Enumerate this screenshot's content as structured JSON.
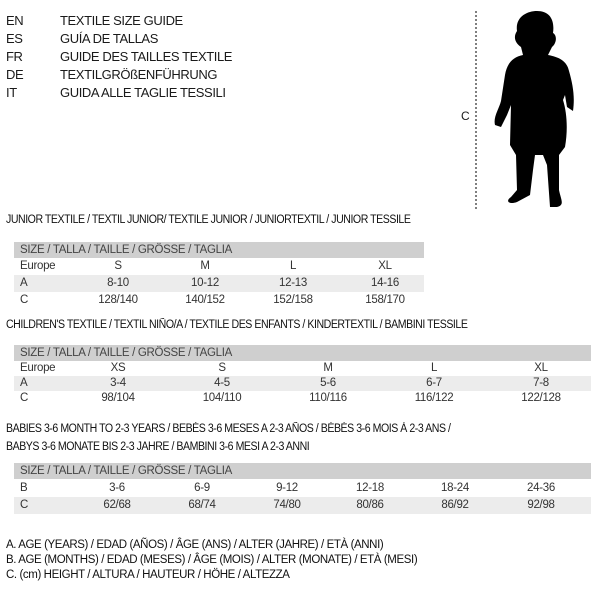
{
  "languages": [
    {
      "code": "EN",
      "label": "TEXTILE SIZE GUIDE"
    },
    {
      "code": "ES",
      "label": "GUÍA DE TALLAS"
    },
    {
      "code": "FR",
      "label": "GUIDE DES TAILLES TEXTILE"
    },
    {
      "code": "DE",
      "label": "TEXTILGRÖßENFÜHRUNG"
    },
    {
      "code": "IT",
      "label": "GUIDA ALLE TAGLIE TESSILI"
    }
  ],
  "figure": {
    "measure_label": "C"
  },
  "junior": {
    "title": "JUNIOR TEXTILE / TEXTIL JUNIOR/ TEXTILE JUNIOR / JUNIORTEXTIL / JUNIOR TESSILE",
    "header": "SIZE / TALLA / TAILLE / GRÖSSE / TAGLIA",
    "rows": [
      {
        "label": "Europe",
        "values": [
          "S",
          "M",
          "L",
          "XL"
        ]
      },
      {
        "label": "A",
        "values": [
          "8-10",
          "10-12",
          "12-13",
          "14-16"
        ]
      },
      {
        "label": "C",
        "values": [
          "128/140",
          "140/152",
          "152/158",
          "158/170"
        ]
      }
    ]
  },
  "children": {
    "title": "CHILDREN'S TEXTILE / TEXTIL NIÑO/A / TEXTILE DES ENFANTS / KINDERTEXTIL / BAMBINI TESSILE",
    "header": "SIZE / TALLA / TAILLE / GRÖSSE / TAGLIA",
    "rows": [
      {
        "label": "Europe",
        "values": [
          "XS",
          "S",
          "M",
          "L",
          "XL"
        ]
      },
      {
        "label": "A",
        "values": [
          "3-4",
          "4-5",
          "5-6",
          "6-7",
          "7-8"
        ]
      },
      {
        "label": "C",
        "values": [
          "98/104",
          "104/110",
          "110/116",
          "116/122",
          "122/128"
        ]
      }
    ]
  },
  "babies": {
    "title_line1": "BABIES 3-6 MONTH TO 2-3 YEARS / BEBÉS 3-6 MESES A 2-3 AÑOS / BÉBÉS 3-6 MOIS À 2-3 ANS /",
    "title_line2": "BABYS 3-6 MONATE BIS 2-3 JAHRE / BAMBINI 3-6 MESI A 2-3 ANNI",
    "header": "SIZE / TALLA / TAILLE / GRÖSSE / TAGLIA",
    "rows": [
      {
        "label": "B",
        "values": [
          "3-6",
          "6-9",
          "9-12",
          "12-18",
          "18-24",
          "24-36"
        ]
      },
      {
        "label": "C",
        "values": [
          "62/68",
          "68/74",
          "74/80",
          "80/86",
          "86/92",
          "92/98"
        ]
      }
    ]
  },
  "legend": [
    "A. AGE (YEARS) / EDAD (AÑOS) / ÂGE (ANS) / ALTER (JAHRE) / ETÀ (ANNI)",
    "B. AGE (MONTHS) / EDAD (MESES) / ÂGE (MOIS) / ALTER (MONATE) / ETÀ (MESI)",
    "C. (cm) HEIGHT / ALTURA / HAUTEUR / HÖHE / ALTEZZA"
  ]
}
